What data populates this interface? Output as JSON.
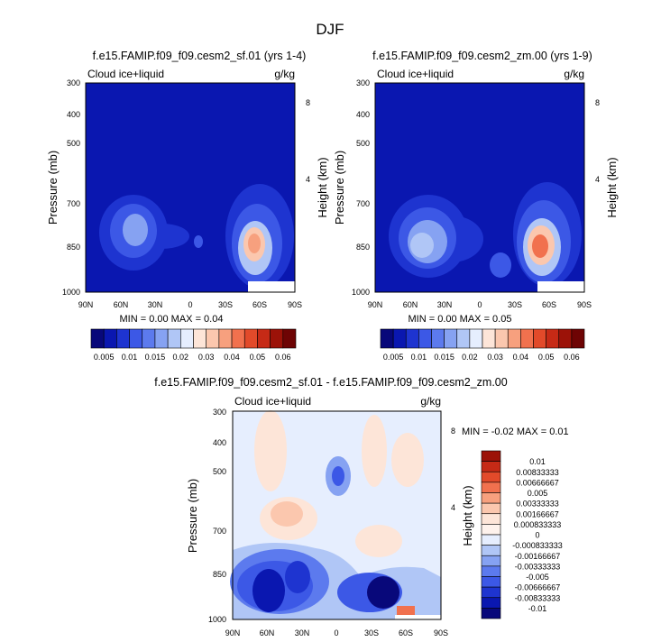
{
  "main_title": "DJF",
  "colors": {
    "level_palette": [
      "#08087a",
      "#0a17b0",
      "#1e34d0",
      "#3c58e6",
      "#5c7aee",
      "#86a2f2",
      "#b0c6f6",
      "#e6eefe",
      "#fde5d8",
      "#fbc7ae",
      "#f7a07e",
      "#f1714e",
      "#e24a2a",
      "#c62a16",
      "#9c1208",
      "#6e0404"
    ]
  },
  "chart_data": [
    {
      "type": "heatmap",
      "title": "f.e15.FAMIP.f09_f09.cesm2_sf.01 (yrs 1-4)",
      "variable_label": "Cloud ice+liquid",
      "units": "g/kg",
      "ylabel": "Pressure (mb)",
      "ylabel_right": "Height (km)",
      "x_ticks": [
        "90N",
        "60N",
        "30N",
        "0",
        "30S",
        "60S",
        "90S"
      ],
      "y_ticks": [
        300,
        400,
        500,
        700,
        850,
        1000
      ],
      "y_right_ticks": [
        8,
        4
      ],
      "ylim": [
        1000,
        300
      ],
      "stats": "MIN =   0.00   MAX =   0.04",
      "features": [
        {
          "lat": 55,
          "p": 820,
          "peak": 0.016
        },
        {
          "lat": -50,
          "p": 860,
          "peak": 0.04
        }
      ],
      "colorbar": {
        "labels": [
          "0.005",
          "0.01",
          "0.015",
          "0.02",
          "0.03",
          "0.04",
          "0.05",
          "0.06"
        ]
      }
    },
    {
      "type": "heatmap",
      "title": "f.e15.FAMIP.f09_f09.cesm2_zm.00 (yrs 1-9)",
      "variable_label": "Cloud ice+liquid",
      "units": "g/kg",
      "ylabel": "Pressure (mb)",
      "ylabel_right": "Height (km)",
      "x_ticks": [
        "90N",
        "60N",
        "30N",
        "0",
        "30S",
        "60S",
        "90S"
      ],
      "y_ticks": [
        300,
        400,
        500,
        700,
        850,
        1000
      ],
      "y_right_ticks": [
        8,
        4
      ],
      "ylim": [
        1000,
        300
      ],
      "stats": "MIN =   0.00   MAX =   0.05",
      "features": [
        {
          "lat": 55,
          "p": 840,
          "peak": 0.02
        },
        {
          "lat": -50,
          "p": 860,
          "peak": 0.05
        }
      ],
      "colorbar": {
        "labels": [
          "0.005",
          "0.01",
          "0.015",
          "0.02",
          "0.03",
          "0.04",
          "0.05",
          "0.06"
        ]
      }
    },
    {
      "type": "heatmap",
      "title": "f.e15.FAMIP.f09_f09.cesm2_sf.01 - f.e15.FAMIP.f09_f09.cesm2_zm.00",
      "variable_label": "Cloud ice+liquid",
      "units": "g/kg",
      "ylabel": "Pressure (mb)",
      "ylabel_right": "Height (km)",
      "x_ticks": [
        "90N",
        "60N",
        "30N",
        "0",
        "30S",
        "60S",
        "90S"
      ],
      "y_ticks": [
        300,
        400,
        500,
        700,
        850,
        1000
      ],
      "y_right_ticks": [
        8,
        4
      ],
      "ylim": [
        1000,
        300
      ],
      "stats": "MIN =  -0.02   MAX =   0.01",
      "features": [
        {
          "lat": 65,
          "p": 870,
          "peak": -0.02
        },
        {
          "lat": 40,
          "p": 840,
          "peak": -0.012
        },
        {
          "lat": -45,
          "p": 880,
          "peak": -0.018
        },
        {
          "lat": 40,
          "p": 650,
          "peak": 0.004
        },
        {
          "lat": -75,
          "p": 980,
          "peak": 0.01
        }
      ],
      "colorbar": {
        "labels": [
          "0.01",
          "0.00833333",
          "0.00666667",
          "0.005",
          "0.00333333",
          "0.00166667",
          "0.000833333",
          "0",
          "-0.000833333",
          "-0.00166667",
          "-0.00333333",
          "-0.005",
          "-0.00666667",
          "-0.00833333",
          "-0.01"
        ]
      }
    }
  ]
}
